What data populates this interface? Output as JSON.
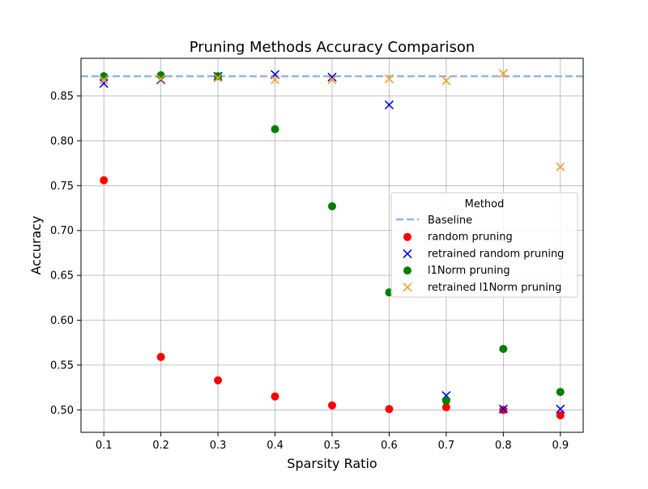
{
  "chart_data": {
    "type": "scatter",
    "title": "Pruning Methods Accuracy Comparison",
    "xlabel": "Sparsity Ratio",
    "ylabel": "Accuracy",
    "xlim": [
      0.06,
      0.94
    ],
    "ylim": [
      0.475,
      0.892
    ],
    "x_ticks": [
      0.1,
      0.2,
      0.3,
      0.4,
      0.5,
      0.6,
      0.7,
      0.8,
      0.9
    ],
    "y_ticks": [
      0.5,
      0.55,
      0.6,
      0.65,
      0.7,
      0.75,
      0.8,
      0.85
    ],
    "x_tick_labels": [
      "0.1",
      "0.2",
      "0.3",
      "0.4",
      "0.5",
      "0.6",
      "0.7",
      "0.8",
      "0.9"
    ],
    "y_tick_labels": [
      "0.50",
      "0.55",
      "0.60",
      "0.65",
      "0.70",
      "0.75",
      "0.80",
      "0.85"
    ],
    "grid": true,
    "legend": {
      "title": "Method",
      "placement": "center-right"
    },
    "baseline": {
      "name": "Baseline",
      "value": 0.872,
      "color": "#8fb4ea",
      "style": "dashed"
    },
    "x": [
      0.1,
      0.2,
      0.3,
      0.4,
      0.5,
      0.6,
      0.7,
      0.8,
      0.9
    ],
    "series": [
      {
        "name": "random pruning",
        "marker": "circle",
        "color": "#ff0000",
        "values": [
          0.756,
          0.559,
          0.533,
          0.515,
          0.505,
          0.501,
          0.503,
          0.5,
          0.494
        ]
      },
      {
        "name": "retrained random pruning",
        "marker": "x",
        "color": "#0000ff",
        "values": [
          0.864,
          0.868,
          0.872,
          0.874,
          0.871,
          0.84,
          0.516,
          0.501,
          0.501
        ]
      },
      {
        "name": "l1Norm pruning",
        "marker": "circle",
        "color": "#008000",
        "values": [
          0.872,
          0.873,
          0.872,
          0.813,
          0.727,
          0.631,
          0.51,
          0.568,
          0.52
        ]
      },
      {
        "name": "retrained l1Norm pruning",
        "marker": "x",
        "color": "#f4a020",
        "values": [
          0.868,
          0.869,
          0.87,
          0.868,
          0.868,
          0.869,
          0.867,
          0.875,
          0.771
        ]
      }
    ]
  }
}
